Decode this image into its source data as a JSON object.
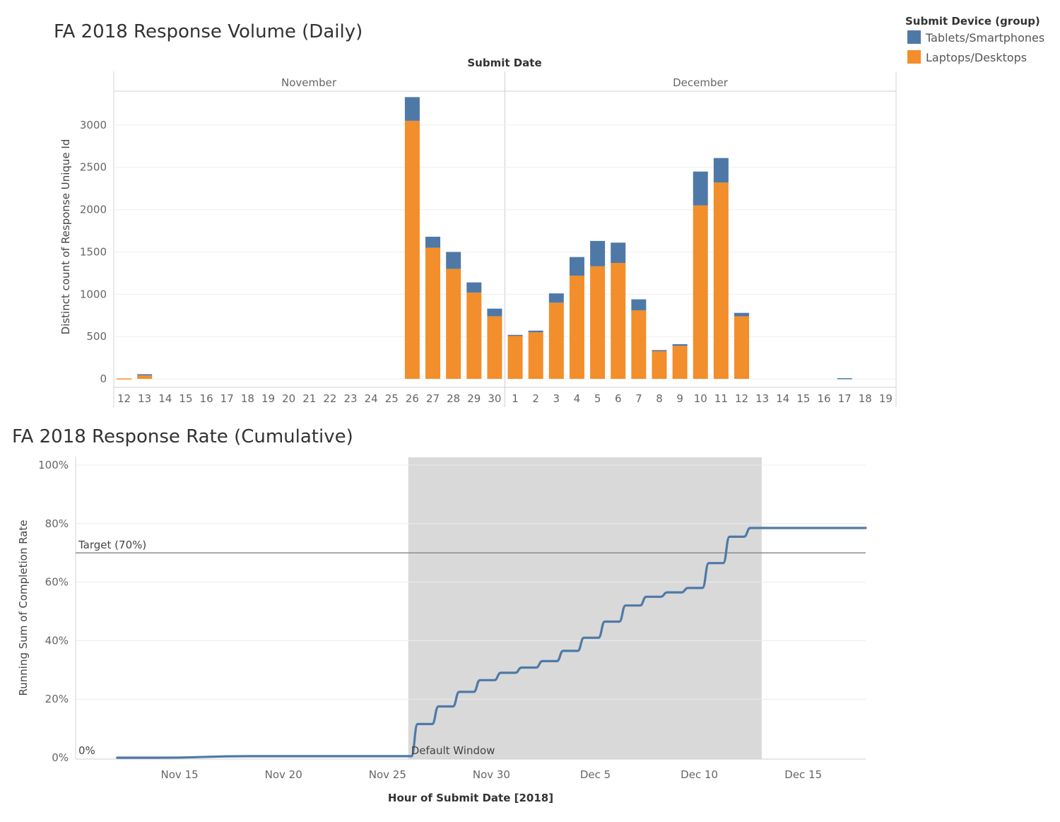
{
  "colors": {
    "tablets": "#4e79a7",
    "laptops": "#f28e2b",
    "shade": "#d9d9d9",
    "line": "#4e79a7",
    "target": "#8c8c8c"
  },
  "legend": {
    "title": "Submit Device (group)",
    "items": [
      {
        "label": "Tablets/Smartphones",
        "color": "#4e79a7"
      },
      {
        "label": "Laptops/Desktops",
        "color": "#f28e2b"
      }
    ]
  },
  "chart_data": [
    {
      "type": "bar",
      "stacked": true,
      "title": "FA 2018 Response Volume (Daily)",
      "header": "Submit Date",
      "months": [
        {
          "name": "November",
          "days": [
            "12",
            "13",
            "14",
            "15",
            "16",
            "17",
            "18",
            "19",
            "20",
            "21",
            "22",
            "23",
            "24",
            "25",
            "26",
            "27",
            "28",
            "29",
            "30"
          ]
        },
        {
          "name": "December",
          "days": [
            "1",
            "2",
            "3",
            "4",
            "5",
            "6",
            "7",
            "8",
            "9",
            "10",
            "11",
            "12",
            "13",
            "14",
            "15",
            "16",
            "17",
            "18",
            "19"
          ]
        }
      ],
      "ylabel": "Distinct count of Response Unique Id",
      "yticks": [
        0,
        500,
        1000,
        1500,
        2000,
        2500,
        3000
      ],
      "ylim": [
        -100,
        3400
      ],
      "series": [
        {
          "name": "Laptops/Desktops",
          "values": [
            5,
            40,
            0,
            0,
            0,
            0,
            0,
            0,
            0,
            0,
            0,
            0,
            0,
            0,
            3050,
            1550,
            1300,
            1020,
            740,
            510,
            550,
            900,
            1220,
            1330,
            1370,
            810,
            330,
            390,
            2050,
            2320,
            740,
            0,
            0,
            0,
            0,
            0,
            0,
            0
          ]
        },
        {
          "name": "Tablets/Smartphones",
          "values": [
            0,
            15,
            0,
            0,
            0,
            0,
            0,
            0,
            0,
            0,
            0,
            0,
            0,
            0,
            280,
            130,
            200,
            120,
            90,
            10,
            20,
            110,
            220,
            300,
            240,
            130,
            10,
            20,
            400,
            290,
            40,
            0,
            0,
            0,
            0,
            8,
            0,
            0
          ]
        }
      ]
    },
    {
      "type": "line",
      "title": "FA 2018 Response Rate (Cumulative)",
      "xlabel": "Hour of Submit Date [2018]",
      "ylabel": "Running Sum of Completion Rate",
      "xticks": [
        "Nov 15",
        "Nov 20",
        "Nov 25",
        "Nov 30",
        "Dec 5",
        "Dec 10",
        "Dec 15"
      ],
      "yticks": [
        "0%",
        "20%",
        "40%",
        "60%",
        "80%",
        "100%"
      ],
      "ylim": [
        0,
        100
      ],
      "xlim": [
        "2018-11-10",
        "2018-12-18"
      ],
      "target": {
        "label": "Target (70%)",
        "value": 70
      },
      "shaded_window": {
        "label": "Default Window",
        "start": "2018-11-26",
        "end": "2018-12-13"
      },
      "start_label": "0%",
      "x": [
        "2018-11-12",
        "2018-11-26",
        "2018-11-27",
        "2018-11-28",
        "2018-11-29",
        "2018-11-30",
        "2018-12-01",
        "2018-12-02",
        "2018-12-03",
        "2018-12-04",
        "2018-12-05",
        "2018-12-06",
        "2018-12-07",
        "2018-12-08",
        "2018-12-09",
        "2018-12-10",
        "2018-12-11",
        "2018-12-12",
        "2018-12-13",
        "2018-12-18"
      ],
      "values": [
        0,
        0.5,
        11.5,
        17.5,
        22.5,
        26.5,
        29,
        30.8,
        33,
        36.5,
        41,
        46.5,
        52,
        55,
        56.5,
        58,
        66.5,
        75.5,
        78.5,
        78.5
      ]
    }
  ]
}
